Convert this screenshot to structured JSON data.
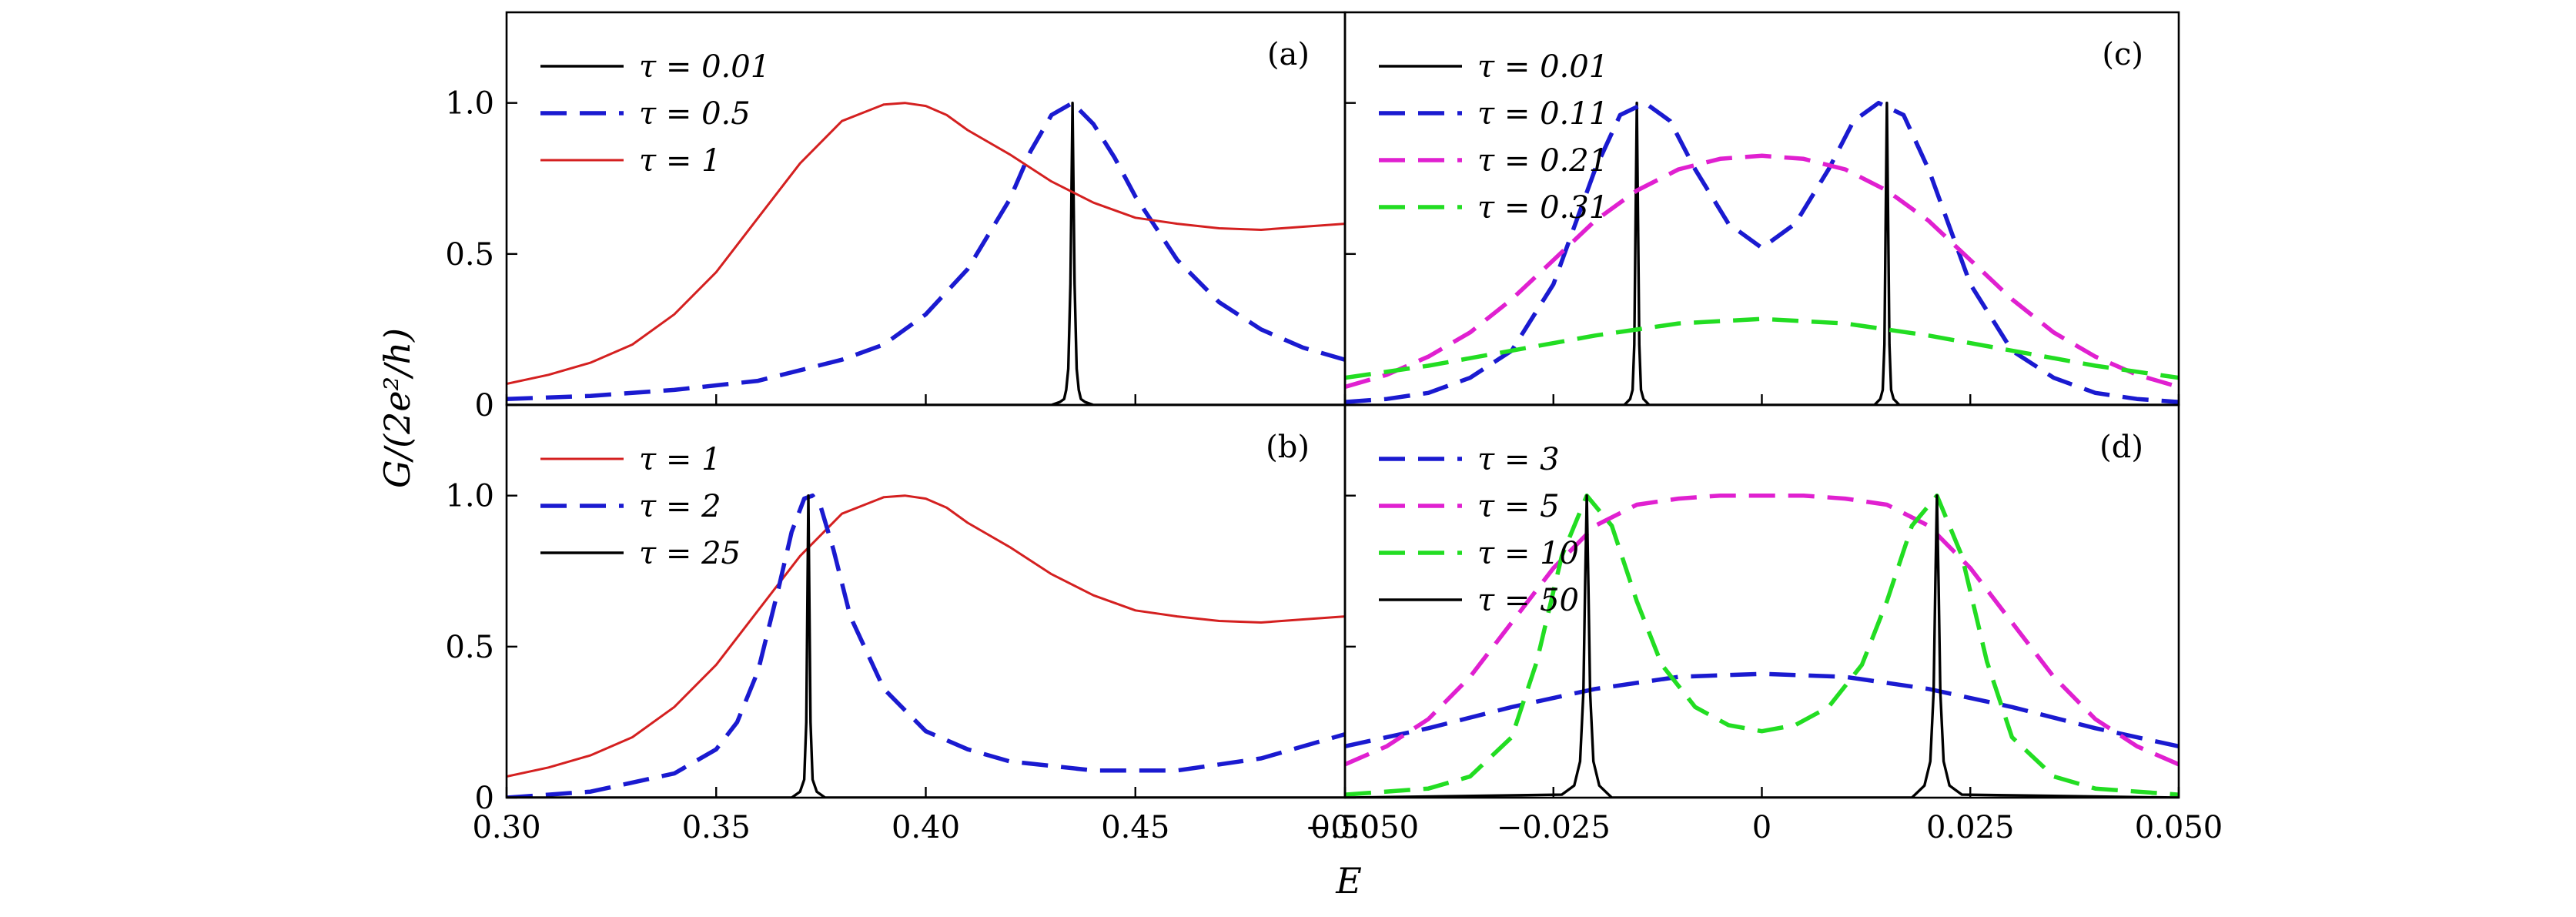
{
  "figure": {
    "ylabel": "G/(2e²/h)",
    "xlabel": "E"
  },
  "chart_data": [
    {
      "panel": "(a)",
      "type": "line",
      "xlim": [
        0.3,
        0.5
      ],
      "ylim": [
        0,
        1.3
      ],
      "xticks": [
        0.3,
        0.35,
        0.4,
        0.45,
        0.5
      ],
      "yticks": [
        0,
        0.5,
        1.0
      ],
      "yticklabels": [
        "0",
        "0.5",
        "1.0"
      ],
      "legend_position": "top-left",
      "series": [
        {
          "name": "τ = 0.01",
          "color": "#000000",
          "style": "solid",
          "width": 3.4,
          "x": [
            0.3,
            0.43,
            0.432,
            0.433,
            0.4335,
            0.434,
            0.4345,
            0.435,
            0.4355,
            0.436,
            0.4365,
            0.437,
            0.438,
            0.44,
            0.5
          ],
          "y": [
            0.0,
            0.0,
            0.01,
            0.02,
            0.05,
            0.12,
            0.4,
            1.0,
            0.4,
            0.12,
            0.05,
            0.02,
            0.01,
            0.0,
            0.0
          ]
        },
        {
          "name": "τ = 0.5",
          "color": "#1a1ad0",
          "style": "dashed",
          "width": 5.5,
          "x": [
            0.3,
            0.32,
            0.34,
            0.36,
            0.38,
            0.39,
            0.4,
            0.41,
            0.42,
            0.425,
            0.43,
            0.435,
            0.44,
            0.445,
            0.45,
            0.46,
            0.47,
            0.48,
            0.49,
            0.5
          ],
          "y": [
            0.02,
            0.03,
            0.05,
            0.08,
            0.15,
            0.2,
            0.3,
            0.45,
            0.68,
            0.84,
            0.96,
            1.0,
            0.93,
            0.82,
            0.69,
            0.48,
            0.34,
            0.25,
            0.19,
            0.15
          ]
        },
        {
          "name": "τ = 1",
          "color": "#d42020",
          "style": "solid",
          "width": 3.0,
          "x": [
            0.3,
            0.31,
            0.32,
            0.33,
            0.34,
            0.35,
            0.36,
            0.37,
            0.38,
            0.39,
            0.395,
            0.4,
            0.405,
            0.41,
            0.42,
            0.43,
            0.44,
            0.45,
            0.46,
            0.47,
            0.48,
            0.49,
            0.5
          ],
          "y": [
            0.07,
            0.1,
            0.14,
            0.2,
            0.3,
            0.44,
            0.62,
            0.8,
            0.94,
            0.995,
            1.0,
            0.99,
            0.96,
            0.91,
            0.83,
            0.74,
            0.67,
            0.62,
            0.6,
            0.585,
            0.58,
            0.59,
            0.6
          ]
        }
      ]
    },
    {
      "panel": "(b)",
      "type": "line",
      "xlim": [
        0.3,
        0.5
      ],
      "ylim": [
        0,
        1.3
      ],
      "xticks": [
        0.3,
        0.35,
        0.4,
        0.45,
        0.5
      ],
      "xticklabels": [
        "0.30",
        "0.35",
        "0.40",
        "0.45",
        "0.50"
      ],
      "yticks": [
        0,
        0.5,
        1.0
      ],
      "yticklabels": [
        "0",
        "0.5",
        "1.0"
      ],
      "legend_position": "top-left",
      "series": [
        {
          "name": "τ = 1",
          "color": "#d42020",
          "style": "solid",
          "width": 3.0,
          "x": [
            0.3,
            0.31,
            0.32,
            0.33,
            0.34,
            0.35,
            0.36,
            0.37,
            0.38,
            0.39,
            0.395,
            0.4,
            0.405,
            0.41,
            0.42,
            0.43,
            0.44,
            0.45,
            0.46,
            0.47,
            0.48,
            0.49,
            0.5
          ],
          "y": [
            0.07,
            0.1,
            0.14,
            0.2,
            0.3,
            0.44,
            0.62,
            0.8,
            0.94,
            0.995,
            1.0,
            0.99,
            0.96,
            0.91,
            0.83,
            0.74,
            0.67,
            0.62,
            0.6,
            0.585,
            0.58,
            0.59,
            0.6
          ]
        },
        {
          "name": "τ = 2",
          "color": "#1a1ad0",
          "style": "dashed",
          "width": 5.5,
          "x": [
            0.3,
            0.32,
            0.34,
            0.35,
            0.355,
            0.36,
            0.365,
            0.368,
            0.371,
            0.373,
            0.375,
            0.378,
            0.382,
            0.39,
            0.4,
            0.41,
            0.42,
            0.44,
            0.46,
            0.48,
            0.5
          ],
          "y": [
            0.0,
            0.02,
            0.08,
            0.16,
            0.25,
            0.42,
            0.7,
            0.88,
            0.99,
            1.0,
            0.96,
            0.82,
            0.6,
            0.36,
            0.22,
            0.16,
            0.12,
            0.09,
            0.09,
            0.13,
            0.21
          ]
        },
        {
          "name": "τ = 25",
          "color": "#000000",
          "style": "solid",
          "width": 3.4,
          "x": [
            0.3,
            0.368,
            0.37,
            0.371,
            0.3715,
            0.372,
            0.3725,
            0.373,
            0.374,
            0.376,
            0.5
          ],
          "y": [
            0.0,
            0.0,
            0.02,
            0.06,
            0.25,
            1.0,
            0.25,
            0.06,
            0.02,
            0.0,
            0.0
          ]
        }
      ]
    },
    {
      "panel": "(c)",
      "type": "line",
      "xlim": [
        -0.05,
        0.05
      ],
      "ylim": [
        0,
        1.3
      ],
      "xticks": [
        -0.05,
        -0.025,
        0,
        0.025,
        0.05
      ],
      "yticks": [
        0,
        0.5,
        1.0
      ],
      "legend_position": "top-left",
      "series": [
        {
          "name": "τ = 0.01",
          "color": "#000000",
          "style": "solid",
          "width": 3.4,
          "x": [
            -0.05,
            -0.0165,
            -0.0158,
            -0.0155,
            -0.0153,
            -0.015,
            -0.0147,
            -0.0145,
            -0.0142,
            -0.0135,
            0.0135,
            0.0142,
            0.0145,
            0.0147,
            0.015,
            0.0153,
            0.0155,
            0.0158,
            0.0165,
            0.05
          ],
          "y": [
            0.0,
            0.0,
            0.02,
            0.05,
            0.2,
            1.0,
            0.2,
            0.05,
            0.02,
            0.0,
            0.0,
            0.02,
            0.05,
            0.2,
            1.0,
            0.2,
            0.05,
            0.02,
            0.0,
            0.0
          ]
        },
        {
          "name": "τ = 0.11",
          "color": "#1a1ad0",
          "style": "dashed",
          "width": 5.5,
          "x": [
            -0.05,
            -0.045,
            -0.04,
            -0.035,
            -0.03,
            -0.025,
            -0.02,
            -0.017,
            -0.014,
            -0.011,
            -0.008,
            -0.004,
            0.0,
            0.004,
            0.008,
            0.011,
            0.014,
            0.017,
            0.02,
            0.025,
            0.03,
            0.035,
            0.04,
            0.045,
            0.05
          ],
          "y": [
            0.01,
            0.02,
            0.04,
            0.09,
            0.18,
            0.4,
            0.78,
            0.96,
            1.0,
            0.94,
            0.78,
            0.6,
            0.52,
            0.6,
            0.78,
            0.94,
            1.0,
            0.96,
            0.78,
            0.4,
            0.18,
            0.09,
            0.04,
            0.02,
            0.01
          ]
        },
        {
          "name": "τ = 0.21",
          "color": "#e020d0",
          "style": "dashed",
          "width": 5.5,
          "x": [
            -0.05,
            -0.045,
            -0.04,
            -0.035,
            -0.03,
            -0.025,
            -0.02,
            -0.015,
            -0.01,
            -0.005,
            0.0,
            0.005,
            0.01,
            0.015,
            0.02,
            0.025,
            0.03,
            0.035,
            0.04,
            0.045,
            0.05
          ],
          "y": [
            0.06,
            0.1,
            0.16,
            0.24,
            0.35,
            0.48,
            0.61,
            0.71,
            0.78,
            0.815,
            0.825,
            0.815,
            0.78,
            0.71,
            0.61,
            0.48,
            0.35,
            0.24,
            0.16,
            0.1,
            0.06
          ]
        },
        {
          "name": "τ = 0.31",
          "color": "#22dd22",
          "style": "dashed",
          "width": 5.5,
          "x": [
            -0.05,
            -0.04,
            -0.03,
            -0.02,
            -0.01,
            0.0,
            0.01,
            0.02,
            0.03,
            0.04,
            0.05
          ],
          "y": [
            0.09,
            0.13,
            0.18,
            0.23,
            0.27,
            0.285,
            0.27,
            0.23,
            0.18,
            0.13,
            0.09
          ]
        }
      ]
    },
    {
      "panel": "(d)",
      "type": "line",
      "xlim": [
        -0.05,
        0.05
      ],
      "ylim": [
        0,
        1.3
      ],
      "xticks": [
        -0.05,
        -0.025,
        0,
        0.025,
        0.05
      ],
      "xticklabels": [
        "−0.050",
        "−0.025",
        "0",
        "0.025",
        "0.050"
      ],
      "yticks": [
        0,
        0.5,
        1.0
      ],
      "legend_position": "top-left",
      "series": [
        {
          "name": "τ = 3",
          "color": "#1a1ad0",
          "style": "dashed",
          "width": 5.5,
          "x": [
            -0.05,
            -0.04,
            -0.03,
            -0.02,
            -0.01,
            0.0,
            0.01,
            0.02,
            0.03,
            0.04,
            0.05
          ],
          "y": [
            0.17,
            0.23,
            0.3,
            0.36,
            0.4,
            0.41,
            0.4,
            0.36,
            0.3,
            0.23,
            0.17
          ]
        },
        {
          "name": "τ = 5",
          "color": "#e020d0",
          "style": "dashed",
          "width": 5.5,
          "x": [
            -0.05,
            -0.045,
            -0.04,
            -0.035,
            -0.03,
            -0.025,
            -0.02,
            -0.015,
            -0.01,
            -0.005,
            0.0,
            0.005,
            0.01,
            0.015,
            0.02,
            0.025,
            0.03,
            0.035,
            0.04,
            0.045,
            0.05
          ],
          "y": [
            0.11,
            0.17,
            0.26,
            0.4,
            0.58,
            0.76,
            0.9,
            0.97,
            0.99,
            1.0,
            1.0,
            1.0,
            0.99,
            0.97,
            0.9,
            0.76,
            0.58,
            0.4,
            0.26,
            0.17,
            0.11
          ]
        },
        {
          "name": "τ = 10",
          "color": "#22dd22",
          "style": "dashed",
          "width": 5.5,
          "x": [
            -0.05,
            -0.04,
            -0.035,
            -0.03,
            -0.027,
            -0.024,
            -0.021,
            -0.018,
            -0.015,
            -0.012,
            -0.008,
            -0.004,
            0.0,
            0.004,
            0.008,
            0.012,
            0.015,
            0.018,
            0.021,
            0.024,
            0.027,
            0.03,
            0.035,
            0.04,
            0.05
          ],
          "y": [
            0.01,
            0.03,
            0.07,
            0.2,
            0.45,
            0.8,
            1.0,
            0.9,
            0.65,
            0.44,
            0.3,
            0.24,
            0.22,
            0.24,
            0.3,
            0.44,
            0.65,
            0.9,
            1.0,
            0.8,
            0.45,
            0.2,
            0.07,
            0.03,
            0.01
          ]
        },
        {
          "name": "τ = 50",
          "color": "#000000",
          "style": "solid",
          "width": 3.4,
          "x": [
            -0.05,
            -0.024,
            -0.0225,
            -0.0218,
            -0.0214,
            -0.0212,
            -0.021,
            -0.0208,
            -0.0206,
            -0.0202,
            -0.0195,
            -0.018,
            0.018,
            0.0195,
            0.0202,
            0.0206,
            0.0208,
            0.021,
            0.0212,
            0.0214,
            0.0218,
            0.0225,
            0.024,
            0.05
          ],
          "y": [
            0.0,
            0.01,
            0.04,
            0.12,
            0.35,
            0.7,
            1.0,
            0.7,
            0.35,
            0.12,
            0.04,
            0.0,
            0.0,
            0.04,
            0.12,
            0.35,
            0.7,
            1.0,
            0.7,
            0.35,
            0.12,
            0.04,
            0.01,
            0.0
          ]
        }
      ]
    }
  ]
}
